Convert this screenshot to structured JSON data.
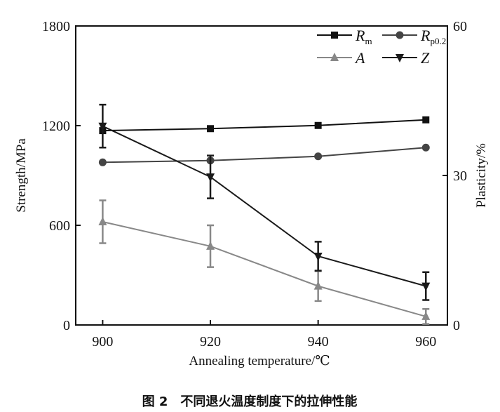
{
  "chart_data": {
    "type": "line",
    "x": [
      900,
      920,
      940,
      960
    ],
    "xlabel": "Annealing temperature/℃",
    "ylabel": "Strength/MPa",
    "ylabel_right": "Plasticity/%",
    "xlim": [
      895,
      964
    ],
    "ylim": [
      0,
      1800
    ],
    "ylim_right": [
      0,
      60
    ],
    "xticks": [
      "900",
      "920",
      "940",
      "960"
    ],
    "yticks": [
      "0",
      "600",
      "1200",
      "1800"
    ],
    "yticks_right": [
      "0",
      "30",
      "60"
    ],
    "legend_placement": "top-right",
    "grid": false,
    "series": [
      {
        "name": "R",
        "sub": "m",
        "axis": "left",
        "marker": "square",
        "color": "#111111",
        "values": [
          1170,
          1182,
          1201,
          1235
        ]
      },
      {
        "name": "R",
        "sub": "p0.2",
        "axis": "left",
        "marker": "circle",
        "color": "#444444",
        "values": [
          979,
          990,
          1015,
          1068
        ]
      },
      {
        "name": "A",
        "sub": "",
        "axis": "right",
        "marker": "triangle-up",
        "color": "#888888",
        "values": [
          20.7,
          15.8,
          7.8,
          1.7
        ],
        "errors": [
          4.3,
          4.2,
          3.0,
          1.5
        ]
      },
      {
        "name": "Z",
        "sub": "",
        "axis": "right",
        "marker": "triangle-down",
        "color": "#1a1a1a",
        "values": [
          39.9,
          29.7,
          13.8,
          7.8
        ],
        "errors": [
          4.3,
          4.3,
          2.9,
          2.8
        ]
      }
    ]
  },
  "caption": "图 2　不同退火温度制度下的拉伸性能"
}
